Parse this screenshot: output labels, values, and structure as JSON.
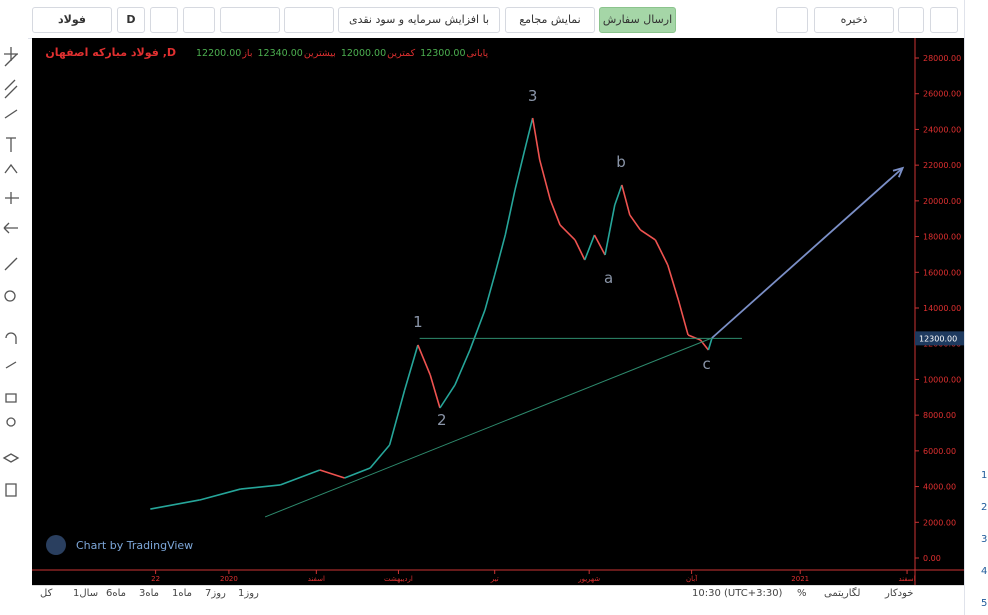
{
  "toolbar": {
    "symbol": "فولاد",
    "interval": "D",
    "order": "ارسال سفارش",
    "assemblies": "نمایش مجامع",
    "adjust": "با افزایش سرمایه و سود نقدی",
    "save": "ذخیره"
  },
  "chart_data": {
    "type": "line",
    "title": "فولاد مبارکه اصفهان ,D",
    "ohlc": [
      {
        "label": "باز",
        "value": {
          "value": 12200,
          "label": "12200.00"
        }
      },
      {
        "label": "بیشترین",
        "value": {
          "value": 12340,
          "label": "12340.00"
        }
      },
      {
        "label": "کمترین",
        "value": {
          "value": 12000,
          "label": "12000.00"
        }
      },
      {
        "label": "پایانی",
        "value": {
          "value": 12300,
          "label": "12300.00"
        }
      }
    ],
    "x": [
      13.4,
      19.0,
      23.6,
      28.1,
      32.6,
      35.4,
      38.3,
      40.5,
      42.2,
      43.7,
      45.1,
      46.2,
      47.9,
      49.6,
      51.3,
      52.4,
      53.6,
      54.7,
      55.8,
      56.7,
      57.5,
      58.7,
      59.8,
      61.5,
      62.6,
      63.7,
      64.9,
      66.0,
      66.8,
      67.7,
      68.9,
      70.6,
      72.0,
      73.2,
      74.3,
      75.7,
      76.6,
      77.0
    ],
    "values": [
      2740,
      3250,
      3860,
      4090,
      4930,
      4480,
      5040,
      6330,
      9400,
      11930,
      10250,
      8400,
      9690,
      11650,
      13890,
      15850,
      18090,
      20610,
      22850,
      24640,
      22290,
      20050,
      18650,
      17810,
      16690,
      18090,
      16970,
      19770,
      20890,
      19210,
      18370,
      17810,
      16410,
      14450,
      12490,
      12210,
      11650,
      12300
    ],
    "up_color": "#26a69a",
    "down_color": "#ef5350",
    "xlim": [
      0,
      100
    ],
    "ylim": [
      -672,
      29120
    ],
    "yticks": [
      {
        "value": 0,
        "label": "0.00"
      },
      {
        "value": 2000,
        "label": "2000.00"
      },
      {
        "value": 4000,
        "label": "4000.00"
      },
      {
        "value": 6000,
        "label": "6000.00"
      },
      {
        "value": 8000,
        "label": "8000.00"
      },
      {
        "value": 10000,
        "label": "10000.00"
      },
      {
        "value": 12000,
        "label": "12000.00"
      },
      {
        "value": 14000,
        "label": "14000.00"
      },
      {
        "value": 16000,
        "label": "16000.00"
      },
      {
        "value": 18000,
        "label": "18000.00"
      },
      {
        "value": 20000,
        "label": "20000.00"
      },
      {
        "value": 22000,
        "label": "22000.00"
      },
      {
        "value": 24000,
        "label": "24000.00"
      },
      {
        "value": 26000,
        "label": "26000.00"
      },
      {
        "value": 28000,
        "label": "28000.00"
      }
    ],
    "xticks": [
      {
        "value": 14.0,
        "label": "22"
      },
      {
        "value": 22.3,
        "label": "2020"
      },
      {
        "value": 32.2,
        "label": "اسفند"
      },
      {
        "value": 41.5,
        "label": "اردیبهشت"
      },
      {
        "value": 52.4,
        "label": "تیر"
      },
      {
        "value": 63.1,
        "label": "شهریور"
      },
      {
        "value": 74.7,
        "label": "آبان"
      },
      {
        "value": 87.0,
        "label": "2021"
      },
      {
        "value": 99.1,
        "label": "اسفند"
      }
    ],
    "last_price": {
      "value": 12300,
      "label": "12300.00"
    },
    "waves": [
      {
        "text": "1",
        "x": 43.7,
        "y": 12940
      },
      {
        "text": "2",
        "x": 46.4,
        "y": 7450
      },
      {
        "text": "3",
        "x": 56.7,
        "y": 25590
      },
      {
        "text": "a",
        "x": 65.3,
        "y": 15400
      },
      {
        "text": "b",
        "x": 66.7,
        "y": 21900
      },
      {
        "text": "c",
        "x": 76.4,
        "y": 10580
      }
    ],
    "lines": [
      {
        "x": [
          43.9,
          80.4
        ],
        "y": [
          12300,
          12300
        ],
        "color": "#2e8b6e"
      },
      {
        "x": [
          26.4,
          77
        ],
        "y": [
          2300,
          12320
        ],
        "color": "#2e8b6e"
      },
      {
        "x": [
          77,
          98.6
        ],
        "y": [
          12320,
          21840
        ],
        "color": "#7b8fc7",
        "arrow": true
      }
    ],
    "watermark": "Chart by TradingView"
  },
  "bottom_bar": {
    "ranges": [
      "کل",
      "1سال",
      "6ماه",
      "3ماه",
      "1ماه",
      "7روز",
      "1روز"
    ],
    "time": "10:30 (UTC+3:30)",
    "percent": "%",
    "log": "لگاریتمی",
    "auto": "خودکار"
  },
  "side_numbers": [
    "1",
    "2",
    "3",
    "4",
    "5"
  ]
}
